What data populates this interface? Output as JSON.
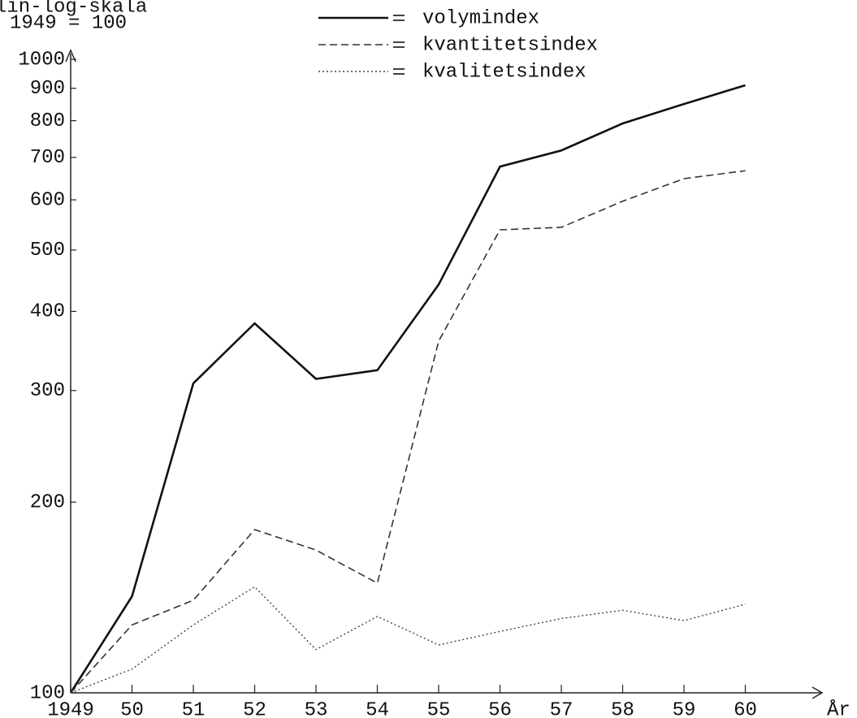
{
  "chart_data": {
    "type": "line",
    "axis_note": [
      "lin-log-skala",
      "1949 = 100"
    ],
    "x_label": "År",
    "categories": [
      "1949",
      "50",
      "51",
      "52",
      "53",
      "54",
      "55",
      "56",
      "57",
      "58",
      "59",
      "60"
    ],
    "series": [
      {
        "name": "volymindex",
        "color": "#111111",
        "dash": "solid",
        "values": [
          100,
          142,
          308,
          383,
          313,
          323,
          441,
          677,
          718,
          792,
          850,
          910
        ]
      },
      {
        "name": "kvantitetsindex",
        "color": "#333333",
        "dash": "dashed",
        "values": [
          100,
          128,
          140,
          181,
          168,
          149,
          359,
          538,
          543,
          597,
          648,
          667
        ]
      },
      {
        "name": "kvalitetsindex",
        "color": "#444444",
        "dash": "dotted",
        "values": [
          100,
          109,
          128,
          147,
          117,
          132,
          119,
          125,
          131,
          135,
          130,
          138
        ]
      }
    ],
    "log_y": true,
    "ylim": [
      100,
      1000
    ],
    "yticks": [
      100,
      200,
      300,
      400,
      500,
      600,
      700,
      800,
      900,
      1000
    ]
  }
}
